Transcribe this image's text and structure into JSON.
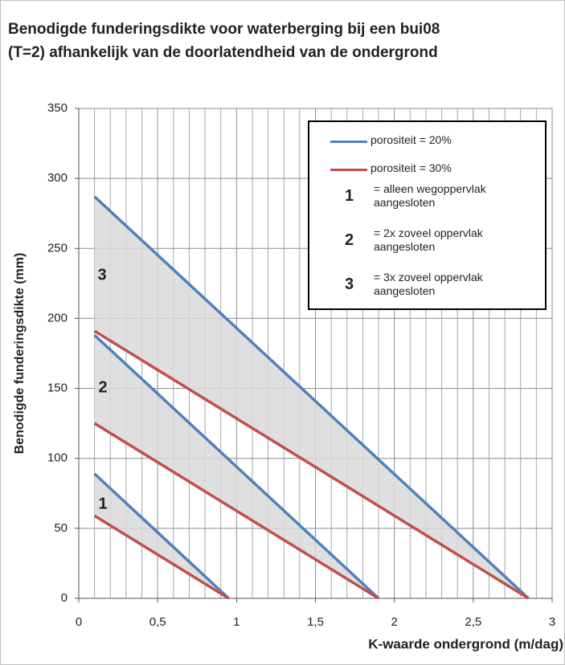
{
  "chart_data": {
    "type": "line",
    "title": "Benodigde funderingsdikte voor waterberging bij een bui08\n(T=2) afhankelijk van de doorlatendheid van de ondergrond",
    "x_label": "K-waarde ondergrond (m/dag)",
    "y_label": "Benodigde funderingsdikte (mm)",
    "xlim": [
      0,
      3
    ],
    "ylim": [
      0,
      350
    ],
    "xticks": [
      0,
      {
        "value": 0.5,
        "label": "0,5"
      },
      1,
      {
        "value": 1.5,
        "label": "1,5"
      },
      2,
      {
        "value": 2.5,
        "label": "2,5"
      },
      3
    ],
    "yticks": [
      0,
      50,
      100,
      150,
      200,
      250,
      300,
      350
    ],
    "xgrid": [
      0.1,
      0.2,
      0.3,
      0.4,
      0.6,
      0.7,
      0.8,
      0.9,
      1.1,
      1.2,
      1.3,
      1.4,
      1.6,
      1.7,
      1.8,
      1.9,
      2.1,
      2.2,
      2.3,
      2.4,
      2.6,
      2.7,
      2.8,
      2.9
    ],
    "grid": true,
    "legend": "upper right",
    "band_color": "#d9d9d9",
    "series": [
      {
        "name": "porositeit = 20%",
        "color": "#4f81bd",
        "segments": [
          {
            "x": [
              0.1,
              0.95
            ],
            "values": [
              89,
              0
            ]
          },
          {
            "x": [
              0.1,
              1.9
            ],
            "values": [
              188,
              0
            ]
          },
          {
            "x": [
              0.1,
              2.85
            ],
            "values": [
              287,
              0
            ]
          }
        ]
      },
      {
        "name": "porositeit = 30%",
        "color": "#c0504d",
        "segments": [
          {
            "x": [
              0.1,
              0.95
            ],
            "values": [
              59,
              0
            ]
          },
          {
            "x": [
              0.1,
              1.9
            ],
            "values": [
              125,
              0
            ]
          },
          {
            "x": [
              0.1,
              2.85
            ],
            "values": [
              191,
              0
            ]
          }
        ]
      }
    ],
    "cases": [
      {
        "label": "1",
        "text": "= alleen wegoppervlak\naangesloten"
      },
      {
        "label": "2",
        "text": "= 2x zoveel oppervlak\naangesloten"
      },
      {
        "label": "3",
        "text": "= 3x zoveel oppervlak\naangesloten"
      }
    ]
  }
}
